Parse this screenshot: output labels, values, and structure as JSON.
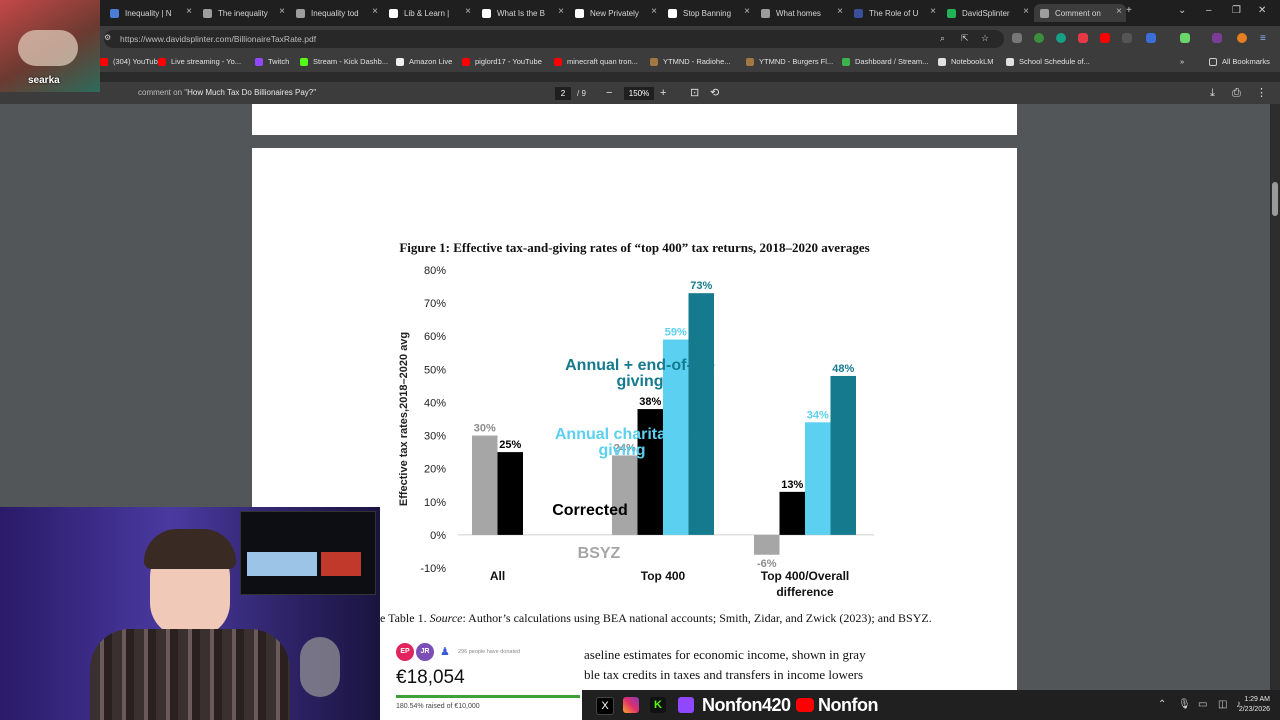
{
  "tabs": [
    {
      "label": "Inequality | N",
      "color": "#4a7dd6"
    },
    {
      "label": "The inequality",
      "color": "#9d9d9d"
    },
    {
      "label": "Inequality tod",
      "color": "#9d9d9d"
    },
    {
      "label": "Lib & Learn |",
      "color": "#ffffff"
    },
    {
      "label": "What Is the B",
      "color": "#ffffff"
    },
    {
      "label": "New Privately",
      "color": "#ffffff"
    },
    {
      "label": "Stop Banning",
      "color": "#ffffff"
    },
    {
      "label": "What homes",
      "color": "#9d9d9d"
    },
    {
      "label": "The Role of U",
      "color": "#3a4f9a"
    },
    {
      "label": "DavidSplinter",
      "color": "#21b355"
    },
    {
      "label": "Comment on",
      "color": "#9d9d9d"
    }
  ],
  "address": {
    "url": "https://www.davidsplinter.com/BillionaireTaxRate.pdf"
  },
  "bookmarks": [
    {
      "label": "(304) YouTube",
      "color": "#ff0000"
    },
    {
      "label": "Live streaming - Yo...",
      "color": "#ff0000"
    },
    {
      "label": "Twitch",
      "color": "#9147ff"
    },
    {
      "label": "Stream - Kick Dashb...",
      "color": "#53fc18"
    },
    {
      "label": "Amazon Live",
      "color": "#f0f0f0"
    },
    {
      "label": "piglord17 - YouTube",
      "color": "#ff0000"
    },
    {
      "label": "minecraft quan tron...",
      "color": "#ff0000"
    },
    {
      "label": "YTMND - Radiohe...",
      "color": "#a07840"
    },
    {
      "label": "YTMND - Burgers Fl...",
      "color": "#a07840"
    },
    {
      "label": "Dashboard / Stream...",
      "color": "#3bb54a"
    },
    {
      "label": "NotebookLM",
      "color": "#e0e0e0"
    },
    {
      "label": "School Schedule of...",
      "color": "#e0e0e0"
    }
  ],
  "all_bookmarks": "All Bookmarks",
  "pdf": {
    "title": "How Much Tax Do Billionaires Pay?\"",
    "title_prefix": "comment on \"",
    "page": "2",
    "total": "/ 9",
    "zoom": "150%"
  },
  "figure": {
    "title": "Figure 1: Effective tax-and-giving rates of “top 400” tax returns, 2018–2020 averages"
  },
  "chart_data": {
    "type": "bar",
    "ylabel": "Effective tax rates,2018–2020 avg",
    "ylim": [
      -10,
      80
    ],
    "yticks": [
      "80%",
      "70%",
      "60%",
      "50%",
      "40%",
      "30%",
      "20%",
      "10%",
      "0%",
      "-10%"
    ],
    "categories": [
      "All",
      "Top 400",
      "Top 400/Overall difference"
    ],
    "category_lines": [
      [
        "All"
      ],
      [
        "Top 400"
      ],
      [
        "Top 400/Overall",
        "difference"
      ]
    ],
    "series": [
      {
        "name": "BSYZ",
        "color": "#a6a6a6",
        "values": [
          30,
          24,
          -6
        ]
      },
      {
        "name": "Corrected",
        "color": "#000000",
        "values": [
          25,
          38,
          13
        ]
      },
      {
        "name": "Annual charitable giving",
        "color": "#5bd0f0",
        "values": [
          null,
          59,
          34
        ]
      },
      {
        "name": "Annual + end-of-life giving",
        "color": "#157a8e",
        "values": [
          null,
          73,
          48
        ]
      }
    ],
    "data_labels": [
      [
        "30%",
        "24%",
        "-6%"
      ],
      [
        "25%",
        "38%",
        "13%"
      ],
      [
        "",
        "59%",
        "34%"
      ],
      [
        "",
        "73%",
        "48%"
      ]
    ],
    "series_label_lines": [
      [
        "BSYZ"
      ],
      [
        "Corrected"
      ],
      [
        "Annual charitable",
        "giving"
      ],
      [
        "Annual + end-of-life",
        "giving"
      ]
    ]
  },
  "source": {
    "prefix": "e Table 1. ",
    "italic": "Source",
    "text": ": Author’s calculations using BEA national accounts; Smith, Zidar, and Zwick (2023); and BSYZ."
  },
  "body": {
    "line1": "aseline estimates for economic income, shown in gray",
    "line2": "ble tax credits in taxes and transfers in income lowers"
  },
  "webcam": {
    "name": "searka"
  },
  "donation": {
    "avatar1": "EP",
    "avatar2": "JR",
    "count": "296 people have donated",
    "amount": "€18,054",
    "progress_text": "180.54% raised of €10,000",
    "progress": 1.8054
  },
  "taskbar": {
    "handle1": "Nonfon420",
    "handle2": "Nonfon",
    "time": "1:29 AM",
    "date": "2/23/2026"
  }
}
